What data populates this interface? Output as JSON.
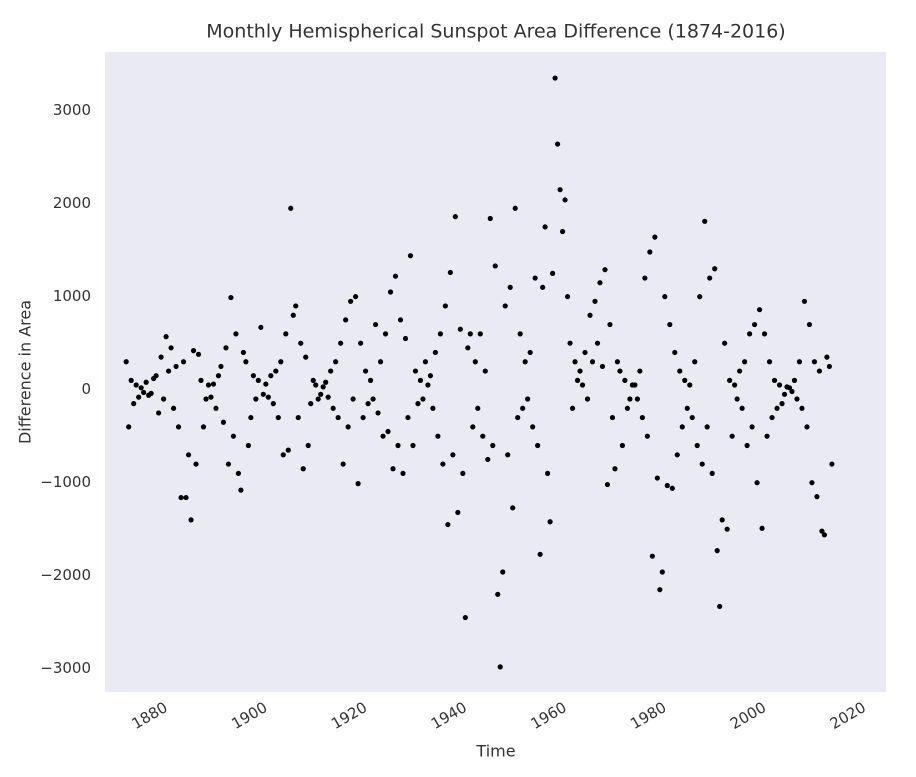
{
  "chart_data": {
    "type": "scatter",
    "title": "Monthly Hemispherical Sunspot Area Difference (1874-2016)",
    "xlabel": "Time",
    "ylabel": "Difference in Area",
    "color": "#000000",
    "grid": false,
    "xlim": [
      1871,
      2027.6
    ],
    "ylim": [
      -3250,
      3630
    ],
    "xticks": [
      1880,
      1900,
      1920,
      1940,
      1960,
      1980,
      2000,
      2020
    ],
    "yticks": [
      {
        "value": -3000,
        "label": "−3000"
      },
      {
        "value": -2000,
        "label": "−2000"
      },
      {
        "value": -1000,
        "label": "−1000"
      },
      0,
      1000,
      2000,
      3000
    ],
    "x": [
      1875.25,
      1875.75,
      1876.25,
      1876.75,
      1877.25,
      1877.75,
      1878.25,
      1878.75,
      1879.25,
      1879.75,
      1880.25,
      1880.75,
      1881.25,
      1881.75,
      1882.25,
      1882.75,
      1883.25,
      1883.75,
      1884.25,
      1884.75,
      1885.25,
      1885.75,
      1886.25,
      1886.75,
      1887.25,
      1887.75,
      1888.25,
      1888.75,
      1889.25,
      1889.75,
      1890.25,
      1890.75,
      1891.25,
      1891.75,
      1892.25,
      1892.75,
      1893.25,
      1893.75,
      1894.25,
      1894.75,
      1895.25,
      1895.75,
      1896.25,
      1896.75,
      1897.25,
      1897.75,
      1898.25,
      1898.75,
      1899.25,
      1899.75,
      1900.25,
      1900.75,
      1901.25,
      1901.75,
      1902.25,
      1902.75,
      1903.25,
      1903.75,
      1904.25,
      1904.75,
      1905.25,
      1905.75,
      1906.25,
      1906.75,
      1907.25,
      1907.75,
      1908.25,
      1908.75,
      1909.25,
      1909.75,
      1910.25,
      1910.75,
      1911.25,
      1911.75,
      1912.25,
      1912.75,
      1913.25,
      1913.75,
      1914.25,
      1914.75,
      1915.25,
      1915.75,
      1916.25,
      1916.75,
      1917.25,
      1917.75,
      1918.25,
      1918.75,
      1919.25,
      1919.75,
      1920.25,
      1920.75,
      1921.25,
      1921.75,
      1922.25,
      1922.75,
      1923.25,
      1923.75,
      1924.25,
      1924.75,
      1925.25,
      1925.75,
      1926.25,
      1926.75,
      1927.25,
      1927.75,
      1928.25,
      1928.75,
      1929.25,
      1929.75,
      1930.25,
      1930.75,
      1931.25,
      1931.75,
      1932.25,
      1932.75,
      1933.25,
      1933.75,
      1934.25,
      1934.75,
      1935.25,
      1935.75,
      1936.25,
      1936.75,
      1937.25,
      1937.75,
      1938.25,
      1938.75,
      1939.25,
      1939.75,
      1940.25,
      1940.75,
      1941.25,
      1941.75,
      1942.25,
      1942.75,
      1943.25,
      1943.75,
      1944.25,
      1944.75,
      1945.25,
      1945.75,
      1946.25,
      1946.75,
      1947.25,
      1947.75,
      1948.25,
      1948.75,
      1949.25,
      1949.75,
      1950.25,
      1950.75,
      1951.25,
      1951.75,
      1952.25,
      1952.75,
      1953.25,
      1953.75,
      1954.25,
      1954.75,
      1955.25,
      1955.75,
      1956.25,
      1956.75,
      1957.25,
      1957.75,
      1958.25,
      1958.75,
      1959.25,
      1959.75,
      1960.25,
      1960.75,
      1961.25,
      1961.75,
      1962.25,
      1962.75,
      1963.25,
      1963.75,
      1964.25,
      1964.75,
      1965.25,
      1965.75,
      1966.25,
      1966.75,
      1967.25,
      1967.75,
      1968.25,
      1968.75,
      1969.25,
      1969.75,
      1970.25,
      1970.75,
      1971.25,
      1971.75,
      1972.25,
      1972.75,
      1973.25,
      1973.75,
      1974.25,
      1974.75,
      1975.25,
      1975.75,
      1976.25,
      1976.75,
      1977.25,
      1977.75,
      1978.25,
      1978.75,
      1979.25,
      1979.75,
      1980.25,
      1980.75,
      1981.25,
      1981.75,
      1982.25,
      1982.75,
      1983.25,
      1983.75,
      1984.25,
      1984.75,
      1985.25,
      1985.75,
      1986.25,
      1986.75,
      1987.25,
      1987.75,
      1988.25,
      1988.75,
      1989.25,
      1989.75,
      1990.25,
      1990.75,
      1991.25,
      1991.75,
      1992.25,
      1992.75,
      1993.25,
      1993.75,
      1994.25,
      1994.75,
      1995.25,
      1995.75,
      1996.25,
      1996.75,
      1997.25,
      1997.75,
      1998.25,
      1998.75,
      1999.25,
      1999.75,
      2000.25,
      2000.75,
      2001.25,
      2001.75,
      2002.25,
      2002.75,
      2003.25,
      2003.75,
      2004.25,
      2004.75,
      2005.25,
      2005.75,
      2006.25,
      2006.75,
      2007.25,
      2007.75,
      2008.25,
      2008.75,
      2009.25,
      2009.75,
      2010.25,
      2010.75,
      2011.25,
      2011.75,
      2012.25,
      2012.75,
      2013.25,
      2013.75,
      2014.25,
      2014.75,
      2015.25,
      2015.75,
      2016.25,
      2016.75
    ],
    "values": [
      300,
      -400,
      100,
      -150,
      50,
      -80,
      20,
      -30,
      80,
      -60,
      -40,
      120,
      150,
      -250,
      350,
      -100,
      570,
      200,
      450,
      -200,
      250,
      -400,
      -1160,
      300,
      -1160,
      -700,
      -1400,
      420,
      -800,
      380,
      100,
      -400,
      -100,
      50,
      -80,
      60,
      -200,
      150,
      250,
      -350,
      450,
      -800,
      990,
      -500,
      600,
      -900,
      -1080,
      400,
      300,
      -600,
      -300,
      150,
      -100,
      100,
      670,
      -50,
      60,
      -80,
      150,
      -150,
      200,
      -300,
      300,
      -700,
      600,
      -650,
      1950,
      800,
      900,
      -300,
      500,
      -850,
      350,
      -600,
      -150,
      100,
      50,
      -100,
      -50,
      30,
      80,
      -80,
      200,
      -200,
      300,
      -300,
      500,
      -800,
      750,
      -400,
      950,
      -100,
      1000,
      -1010,
      500,
      -300,
      200,
      -150,
      100,
      -100,
      700,
      -250,
      300,
      -500,
      600,
      -450,
      1050,
      -850,
      1220,
      -600,
      750,
      -900,
      550,
      -300,
      1440,
      -600,
      200,
      -150,
      100,
      -100,
      300,
      50,
      150,
      -200,
      400,
      -500,
      600,
      -800,
      900,
      -1450,
      1260,
      -700,
      1860,
      -1320,
      650,
      -900,
      -2450,
      450,
      600,
      -400,
      300,
      -200,
      600,
      -500,
      200,
      -750,
      1840,
      -600,
      1330,
      -2200,
      -2980,
      -1960,
      900,
      -700,
      1100,
      -1270,
      1950,
      -300,
      600,
      -200,
      300,
      -100,
      400,
      -400,
      1200,
      -600,
      -1770,
      1100,
      1750,
      -900,
      -1420,
      1250,
      3350,
      2640,
      2150,
      1700,
      2040,
      1000,
      500,
      -200,
      300,
      100,
      200,
      50,
      400,
      -100,
      800,
      300,
      950,
      500,
      1150,
      250,
      1290,
      -1020,
      700,
      -300,
      -850,
      300,
      200,
      -600,
      100,
      -200,
      -100,
      50,
      50,
      -100,
      200,
      -300,
      1200,
      -500,
      1480,
      -1790,
      1640,
      -950,
      -2150,
      -1960,
      1000,
      -1030,
      700,
      -1060,
      400,
      -700,
      200,
      -400,
      100,
      -200,
      50,
      -300,
      300,
      -600,
      1000,
      -800,
      1810,
      -400,
      1200,
      -900,
      1300,
      -1730,
      -2330,
      -1400,
      500,
      -1500,
      100,
      -500,
      50,
      -100,
      200,
      -200,
      300,
      -600,
      600,
      -400,
      700,
      -1000,
      860,
      -1490,
      600,
      -500,
      300,
      -300,
      100,
      -200,
      50,
      -150,
      -50,
      30,
      20,
      -20,
      100,
      -100,
      300,
      -200,
      950,
      -400,
      700,
      -1000,
      300,
      -1150,
      200,
      -1520,
      -1560,
      350,
      250,
      -800
    ]
  }
}
